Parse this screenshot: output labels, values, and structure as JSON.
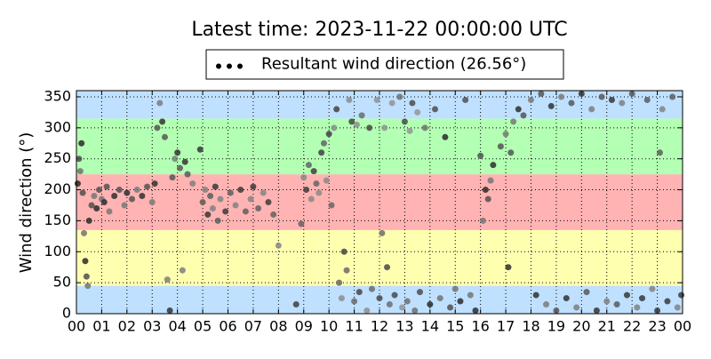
{
  "chart_data": {
    "type": "scatter",
    "title": "Latest time: 2023-11-22 00:00:00 UTC",
    "ylabel": "Wind direction (°)",
    "legend": "upper center",
    "grid": true,
    "xlim": [
      0,
      24
    ],
    "ylim": [
      0,
      360
    ],
    "xticks": [
      {
        "value": 0,
        "label": "00"
      },
      {
        "value": 1,
        "label": "01"
      },
      {
        "value": 2,
        "label": "02"
      },
      {
        "value": 3,
        "label": "03"
      },
      {
        "value": 4,
        "label": "04"
      },
      {
        "value": 5,
        "label": "05"
      },
      {
        "value": 6,
        "label": "06"
      },
      {
        "value": 7,
        "label": "07"
      },
      {
        "value": 8,
        "label": "08"
      },
      {
        "value": 9,
        "label": "09"
      },
      10,
      11,
      12,
      13,
      14,
      15,
      16,
      17,
      18,
      19,
      20,
      21,
      22,
      23,
      {
        "value": 24,
        "label": "00"
      }
    ],
    "yticks": [
      0,
      50,
      100,
      150,
      200,
      250,
      300,
      350
    ],
    "bands": [
      {
        "range": [
          0,
          45
        ],
        "color": "#bfe0ff"
      },
      {
        "range": [
          45,
          135
        ],
        "color": "#ffffb0"
      },
      {
        "range": [
          135,
          225
        ],
        "color": "#ffb3b3"
      },
      {
        "range": [
          225,
          315
        ],
        "color": "#b3ffb3"
      },
      {
        "range": [
          315,
          360
        ],
        "color": "#bfe0ff"
      }
    ],
    "series": [
      {
        "name": "Resultant wind direction (26.56°)",
        "color": "#555555",
        "x": [
          0.05,
          0.1,
          0.15,
          0.2,
          0.25,
          0.3,
          0.35,
          0.4,
          0.45,
          0.5,
          0.6,
          0.7,
          0.8,
          0.9,
          1.0,
          1.1,
          1.2,
          1.3,
          1.5,
          1.7,
          1.9,
          2.0,
          2.2,
          2.4,
          2.6,
          2.8,
          3.0,
          3.1,
          3.2,
          3.3,
          3.4,
          3.5,
          3.6,
          3.7,
          3.8,
          3.9,
          4.0,
          4.1,
          4.2,
          4.3,
          4.4,
          4.6,
          4.9,
          5.0,
          5.1,
          5.2,
          5.3,
          5.4,
          5.5,
          5.6,
          5.7,
          5.9,
          6.1,
          6.3,
          6.5,
          6.7,
          6.9,
          7.0,
          7.2,
          7.4,
          7.6,
          7.8,
          8.0,
          8.7,
          8.9,
          9.0,
          9.1,
          9.2,
          9.3,
          9.4,
          9.5,
          9.6,
          9.7,
          9.8,
          9.9,
          10.0,
          10.1,
          10.2,
          10.3,
          10.4,
          10.5,
          10.6,
          10.7,
          10.8,
          10.9,
          11.0,
          11.1,
          11.2,
          11.3,
          11.5,
          11.6,
          11.7,
          11.9,
          12.0,
          12.1,
          12.2,
          12.3,
          12.4,
          12.5,
          12.6,
          12.8,
          12.9,
          13.0,
          13.1,
          13.2,
          13.3,
          13.4,
          13.5,
          13.6,
          13.8,
          14.0,
          14.2,
          14.4,
          14.6,
          14.8,
          15.0,
          15.2,
          15.4,
          15.6,
          15.8,
          16.0,
          16.1,
          16.2,
          16.3,
          16.4,
          16.5,
          16.8,
          17.0,
          17.1,
          17.2,
          17.3,
          17.5,
          17.7,
          18.0,
          18.2,
          18.4,
          18.6,
          18.8,
          19.0,
          19.2,
          19.4,
          19.6,
          19.8,
          20.0,
          20.2,
          20.4,
          20.6,
          20.8,
          21.0,
          21.2,
          21.4,
          21.6,
          21.8,
          22.0,
          22.2,
          22.4,
          22.6,
          22.8,
          23.0,
          23.1,
          23.2,
          23.4,
          23.6,
          23.8,
          23.95
        ],
        "values": [
          210,
          250,
          230,
          275,
          195,
          130,
          85,
          60,
          45,
          150,
          175,
          190,
          170,
          200,
          185,
          180,
          205,
          165,
          190,
          200,
          175,
          195,
          185,
          200,
          190,
          205,
          180,
          210,
          300,
          340,
          310,
          285,
          55,
          5,
          220,
          250,
          260,
          235,
          70,
          245,
          225,
          210,
          265,
          180,
          200,
          160,
          190,
          170,
          205,
          150,
          185,
          165,
          195,
          175,
          200,
          165,
          185,
          205,
          170,
          195,
          180,
          160,
          110,
          15,
          145,
          220,
          200,
          240,
          185,
          230,
          210,
          195,
          260,
          275,
          215,
          290,
          175,
          300,
          330,
          50,
          25,
          100,
          70,
          345,
          310,
          20,
          305,
          35,
          320,
          5,
          300,
          40,
          345,
          25,
          130,
          300,
          75,
          15,
          340,
          30,
          350,
          10,
          310,
          20,
          295,
          340,
          5,
          325,
          35,
          300,
          15,
          330,
          25,
          285,
          10,
          40,
          20,
          345,
          30,
          5,
          255,
          150,
          200,
          185,
          215,
          240,
          270,
          290,
          75,
          260,
          310,
          330,
          320,
          345,
          30,
          355,
          15,
          335,
          5,
          350,
          25,
          340,
          10,
          355,
          35,
          330,
          5,
          350,
          20,
          345,
          15,
          340,
          30,
          355,
          10,
          25,
          345,
          40,
          5,
          260,
          330,
          20,
          350,
          10,
          30
        ]
      }
    ]
  }
}
